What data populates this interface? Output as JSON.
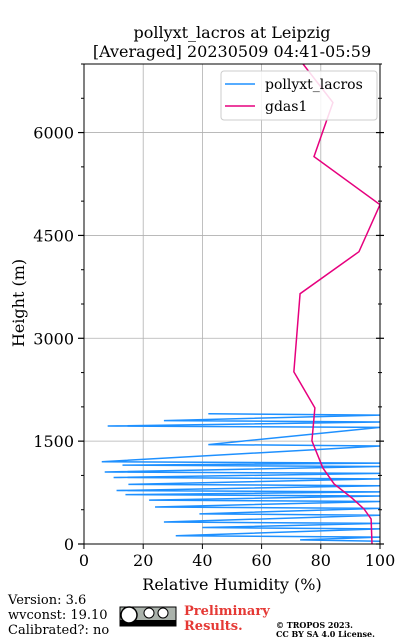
{
  "chart_data": {
    "type": "profile",
    "title": [
      "pollyxt_lacros at Leipzig",
      "[Averaged] 20230509 04:41-05:59"
    ],
    "xlabel": "Relative Humidity (%)",
    "ylabel": "Height (m)",
    "xlim": [
      0,
      100
    ],
    "xticks": [
      0,
      20,
      40,
      60,
      80,
      100
    ],
    "ylim": [
      0,
      7000
    ],
    "yticks": [
      0,
      1500,
      3000,
      4500,
      6000
    ],
    "yminorticks": [
      500,
      1000,
      2000,
      2500,
      3500,
      4000,
      5000,
      5500,
      6500,
      7000
    ],
    "grid": true,
    "legend": "upper right",
    "series": [
      {
        "name": "pollyxt_lacros",
        "color": "#1e90ff",
        "x": [
          42,
          100,
          27,
          100,
          8,
          100,
          42,
          100,
          6,
          100,
          13,
          100,
          7,
          100,
          10,
          100,
          15,
          100,
          11,
          100,
          14,
          100,
          22,
          100,
          24,
          100,
          39,
          100,
          27,
          100,
          40,
          100,
          31,
          100,
          73,
          100
        ],
        "y": [
          1900,
          1880,
          1800,
          1780,
          1720,
          1700,
          1450,
          1430,
          1200,
          1180,
          1150,
          1130,
          1050,
          1030,
          970,
          950,
          870,
          850,
          780,
          760,
          720,
          700,
          640,
          620,
          540,
          520,
          440,
          420,
          320,
          300,
          240,
          220,
          120,
          100,
          60,
          40
        ]
      },
      {
        "name": "gdas1",
        "color": "#e6007e",
        "x": [
          74,
          84.1,
          77.7,
          100,
          92.9,
          73,
          70.9,
          78,
          77,
          80.7,
          84.5,
          90.5,
          94.6,
          97,
          97.3
        ],
        "y": [
          7000,
          6438,
          5650,
          4949,
          4263,
          3650,
          2511,
          1985,
          1504,
          1109,
          876,
          672,
          511,
          365,
          0
        ]
      }
    ],
    "footer": {
      "version": "Version: 3.6",
      "wvconst": "wvconst:  19.10",
      "calibrated": "Calibrated?: no",
      "preliminary": [
        "Preliminary",
        "Results."
      ],
      "copyright": [
        "© TROPOS 2023.",
        "CC BY SA 4.0 License."
      ]
    }
  }
}
